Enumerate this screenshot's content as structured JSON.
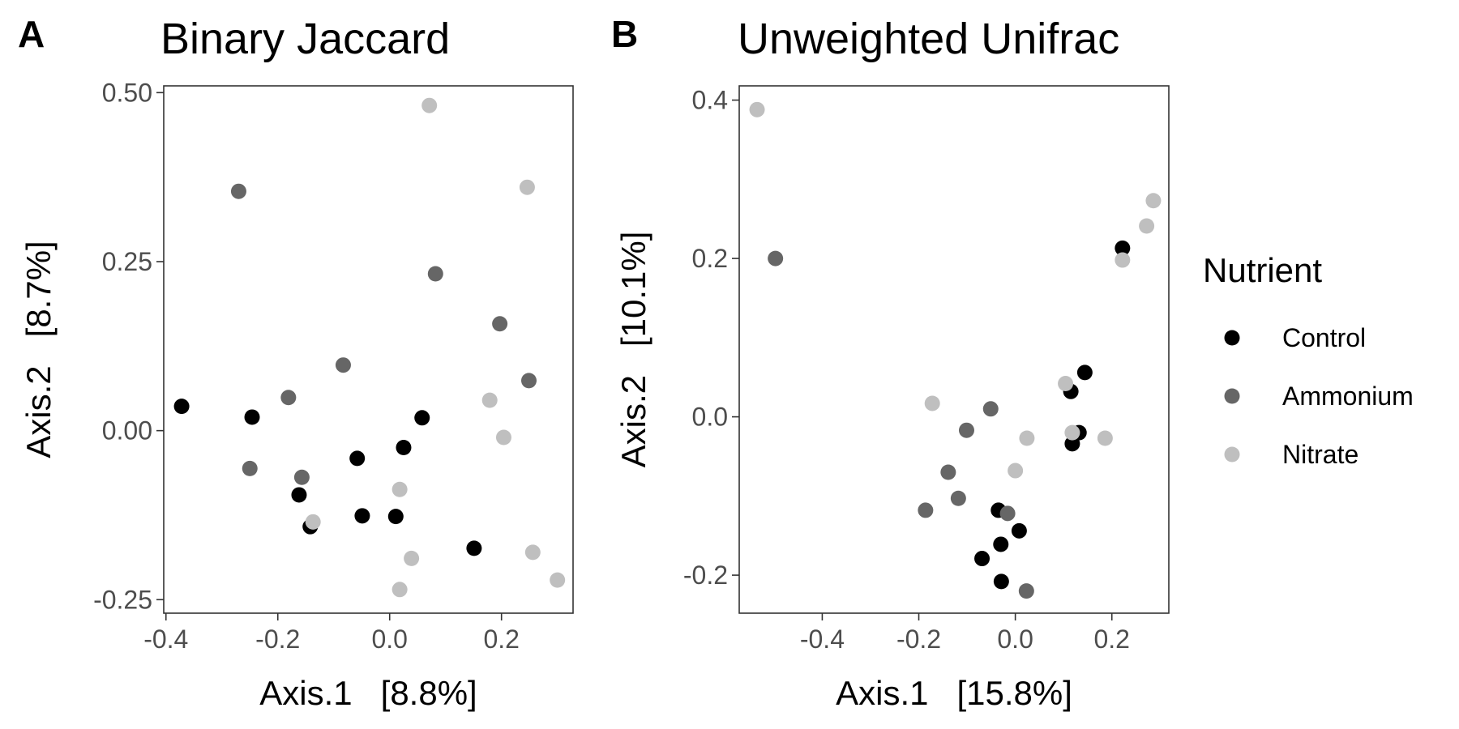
{
  "colors": {
    "Control": "#000000",
    "Ammonium": "#666666",
    "Nitrate": "#bfbfbf"
  },
  "legend": {
    "title": "Nutrient",
    "entries": [
      "Control",
      "Ammonium",
      "Nitrate"
    ]
  },
  "chart_data": [
    {
      "type": "scatter",
      "panel_label": "A",
      "title": "Binary Jaccard",
      "xlabel": "Axis.1   [8.8%]",
      "ylabel": "Axis.2   [8.7%]",
      "xlim": [
        -0.404,
        0.328
      ],
      "ylim": [
        -0.27,
        0.51
      ],
      "x_ticks": [
        -0.4,
        -0.2,
        0.0,
        0.2
      ],
      "x_tick_labels": [
        "-0.4",
        "-0.2",
        "0.0",
        "0.2"
      ],
      "y_ticks": [
        -0.25,
        0.0,
        0.25,
        0.5
      ],
      "y_tick_labels": [
        "-0.25",
        "0.00",
        "0.25",
        "0.50"
      ],
      "series": [
        {
          "name": "Control",
          "points": [
            [
              -0.372,
              0.036
            ],
            [
              -0.246,
              0.02
            ],
            [
              -0.162,
              -0.095
            ],
            [
              -0.142,
              -0.142
            ],
            [
              -0.058,
              -0.041
            ],
            [
              -0.049,
              -0.126
            ],
            [
              0.011,
              -0.127
            ],
            [
              0.025,
              -0.025
            ],
            [
              0.058,
              0.019
            ],
            [
              0.151,
              -0.174
            ]
          ]
        },
        {
          "name": "Ammonium",
          "points": [
            [
              -0.27,
              0.354
            ],
            [
              -0.25,
              -0.056
            ],
            [
              -0.181,
              0.049
            ],
            [
              -0.157,
              -0.069
            ],
            [
              -0.083,
              0.097
            ],
            [
              0.082,
              0.232
            ],
            [
              0.197,
              0.158
            ],
            [
              0.249,
              0.074
            ]
          ]
        },
        {
          "name": "Nitrate",
          "points": [
            [
              0.071,
              0.481
            ],
            [
              0.246,
              0.36
            ],
            [
              0.179,
              0.045
            ],
            [
              0.204,
              -0.01
            ],
            [
              0.018,
              -0.087
            ],
            [
              -0.137,
              -0.135
            ],
            [
              0.039,
              -0.189
            ],
            [
              0.018,
              -0.235
            ],
            [
              0.256,
              -0.18
            ],
            [
              0.3,
              -0.221
            ]
          ]
        }
      ]
    },
    {
      "type": "scatter",
      "panel_label": "B",
      "title": "Unweighted Unifrac",
      "xlabel": "Axis.1   [15.8%]",
      "ylabel": "Axis.2   [10.1%]",
      "xlim": [
        -0.572,
        0.318
      ],
      "ylim": [
        -0.248,
        0.418
      ],
      "x_ticks": [
        -0.4,
        -0.2,
        0.0,
        0.2
      ],
      "x_tick_labels": [
        "-0.4",
        "-0.2",
        "0.0",
        "0.2"
      ],
      "y_ticks": [
        -0.2,
        0.0,
        0.2,
        0.4
      ],
      "y_tick_labels": [
        "-0.2",
        "0.0",
        "0.2",
        "0.4"
      ],
      "series": [
        {
          "name": "Control",
          "points": [
            [
              0.222,
              0.213
            ],
            [
              0.144,
              0.056
            ],
            [
              0.115,
              0.032
            ],
            [
              0.132,
              -0.02
            ],
            [
              0.118,
              -0.034
            ],
            [
              -0.035,
              -0.118
            ],
            [
              -0.03,
              -0.161
            ],
            [
              0.008,
              -0.144
            ],
            [
              -0.069,
              -0.179
            ],
            [
              -0.029,
              -0.208
            ]
          ]
        },
        {
          "name": "Ammonium",
          "points": [
            [
              -0.497,
              0.2
            ],
            [
              -0.051,
              0.01
            ],
            [
              -0.101,
              -0.017
            ],
            [
              -0.139,
              -0.07
            ],
            [
              -0.118,
              -0.103
            ],
            [
              -0.186,
              -0.118
            ],
            [
              -0.016,
              -0.122
            ],
            [
              0.023,
              -0.22
            ]
          ]
        },
        {
          "name": "Nitrate",
          "points": [
            [
              -0.535,
              0.388
            ],
            [
              0.286,
              0.273
            ],
            [
              0.272,
              0.241
            ],
            [
              0.222,
              0.198
            ],
            [
              0.104,
              0.042
            ],
            [
              0.118,
              -0.02
            ],
            [
              0.186,
              -0.027
            ],
            [
              0.024,
              -0.027
            ],
            [
              0.0,
              -0.068
            ],
            [
              -0.172,
              0.017
            ]
          ]
        }
      ]
    }
  ]
}
